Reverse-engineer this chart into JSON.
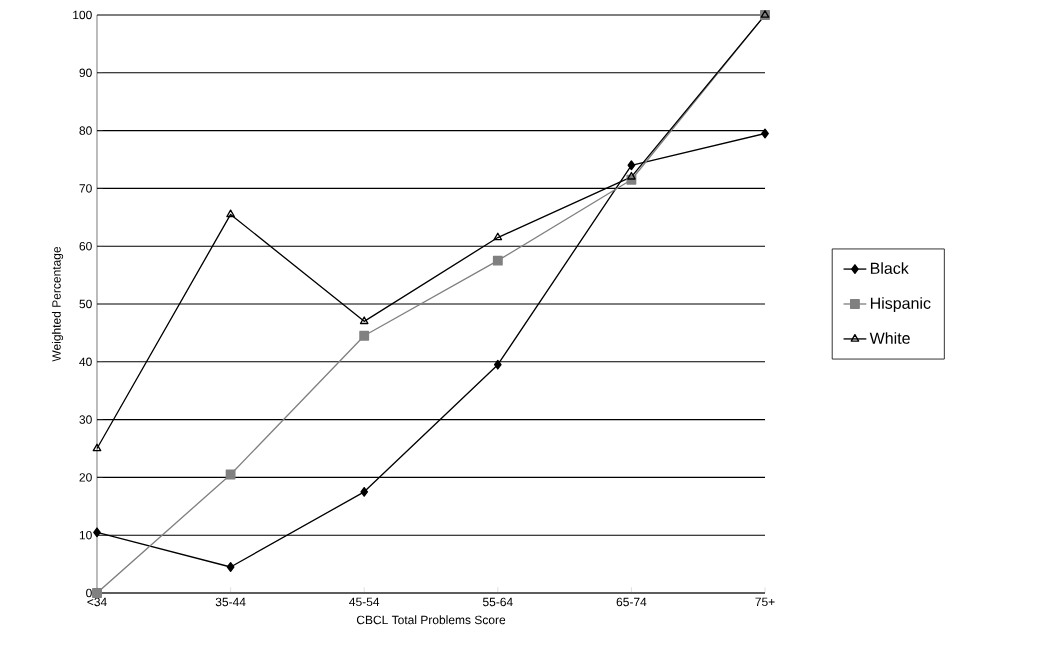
{
  "chart_data": {
    "type": "line",
    "xlabel": "CBCL Total Problems Score",
    "ylabel": "Weighted Percentage",
    "categories": [
      "<34",
      "35-44",
      "45-54",
      "55-64",
      "65-74",
      "75+"
    ],
    "series": [
      {
        "name": "Black",
        "color": "#000000",
        "marker": "diamond",
        "values": [
          10.5,
          4.5,
          17.5,
          39.5,
          74,
          79.5
        ]
      },
      {
        "name": "Hispanic",
        "color": "#808080",
        "marker": "square",
        "values": [
          0,
          20.5,
          44.5,
          57.5,
          71.5,
          100
        ]
      },
      {
        "name": "White",
        "color": "#000000",
        "marker": "triangle",
        "values": [
          25,
          65.5,
          47,
          61.5,
          72,
          100
        ]
      }
    ],
    "ylim": [
      0,
      100
    ],
    "yticks": [
      0,
      10,
      20,
      30,
      40,
      50,
      60,
      70,
      80,
      90,
      100
    ],
    "grid": "y",
    "legend": "right",
    "line_style": "solid"
  }
}
